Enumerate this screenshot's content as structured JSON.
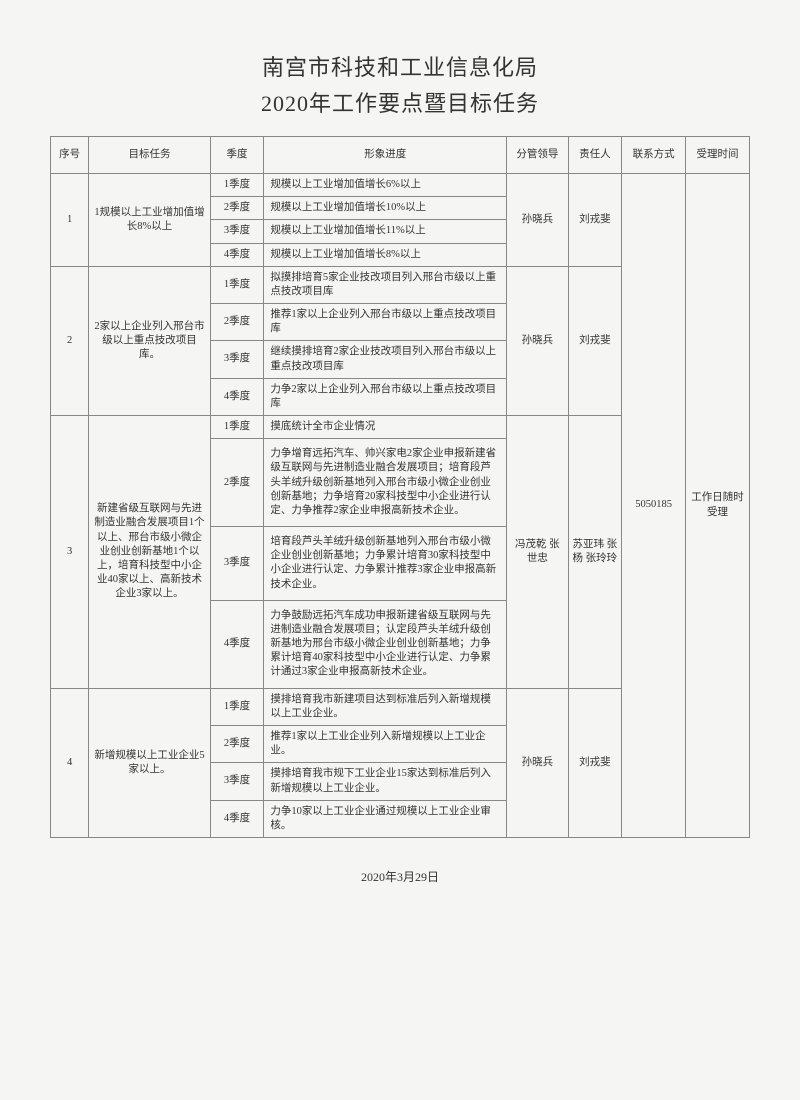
{
  "title_line1": "南宫市科技和工业信息化局",
  "title_line2": "2020年工作要点暨目标任务",
  "headers": {
    "seq": "序号",
    "task": "目标任务",
    "quarter": "季度",
    "progress": "形象进度",
    "leader": "分管领导",
    "responsible": "责任人",
    "contact": "联系方式",
    "time": "受理时间"
  },
  "contact_value": "5050185",
  "time_value": "工作日随时受理",
  "tasks": [
    {
      "seq": "1",
      "name": "1规模以上工业增加值增长8%以上",
      "leader": "孙晓兵",
      "responsible": "刘戎斐",
      "quarters": [
        {
          "q": "1季度",
          "p": "规模以上工业增加值增长6%以上"
        },
        {
          "q": "2季度",
          "p": "规模以上工业增加值增长10%以上"
        },
        {
          "q": "3季度",
          "p": "规模以上工业增加值增长11%以上"
        },
        {
          "q": "4季度",
          "p": "规模以上工业增加值增长8%以上"
        }
      ]
    },
    {
      "seq": "2",
      "name": "2家以上企业列入邢台市级以上重点技改项目库。",
      "leader": "孙晓兵",
      "responsible": "刘戎斐",
      "quarters": [
        {
          "q": "1季度",
          "p": "拟摸排培育5家企业技改项目列入邢台市级以上重点技改项目库"
        },
        {
          "q": "2季度",
          "p": "推荐1家以上企业列入邢台市级以上重点技改项目库"
        },
        {
          "q": "3季度",
          "p": "继续摸排培育2家企业技改项目列入邢台市级以上重点技改项目库"
        },
        {
          "q": "4季度",
          "p": "力争2家以上企业列入邢台市级以上重点技改项目库"
        }
      ]
    },
    {
      "seq": "3",
      "name": "新建省级互联网与先进制造业融合发展项目1个以上、邢台市级小微企业创业创新基地1个以上，培育科技型中小企业40家以上、高新技术企业3家以上。",
      "leader": "冯茂乾 张世忠",
      "responsible": "苏亚玮 张 杨 张玲玲",
      "quarters": [
        {
          "q": "1季度",
          "p": "摸底统计全市企业情况"
        },
        {
          "q": "2季度",
          "p": "力争增育远拓汽车、帅兴家电2家企业申报新建省级互联网与先进制造业融合发展项目；培育段芦头羊绒升级创新基地列入邢台市级小微企业创业创新基地；力争培育20家科技型中小企业进行认定、力争推荐2家企业申报高新技术企业。"
        },
        {
          "q": "3季度",
          "p": "培育段芦头羊绒升级创新基地列入邢台市级小微企业创业创新基地；力争累计培育30家科技型中小企业进行认定、力争累计推荐3家企业申报高新技术企业。"
        },
        {
          "q": "4季度",
          "p": "力争鼓励远拓汽车成功申报新建省级互联网与先进制造业融合发展项目；认定段芦头羊绒升级创新基地为邢台市级小微企业创业创新基地；力争累计培育40家科技型中小企业进行认定、力争累计通过3家企业申报高新技术企业。"
        }
      ]
    },
    {
      "seq": "4",
      "name": "新增规模以上工业企业5家以上。",
      "leader": "孙晓兵",
      "responsible": "刘戎斐",
      "quarters": [
        {
          "q": "1季度",
          "p": "摸排培育我市新建项目达到标准后列入新增规模以上工业企业。"
        },
        {
          "q": "2季度",
          "p": "推荐1家以上工业企业列入新增规模以上工业企业。"
        },
        {
          "q": "3季度",
          "p": "摸排培育我市规下工业企业15家达到标准后列入新增规模以上工业企业。"
        },
        {
          "q": "4季度",
          "p": "力争10家以上工业企业通过规模以上工业企业审核。"
        }
      ]
    }
  ],
  "footer_date": "2020年3月29日"
}
